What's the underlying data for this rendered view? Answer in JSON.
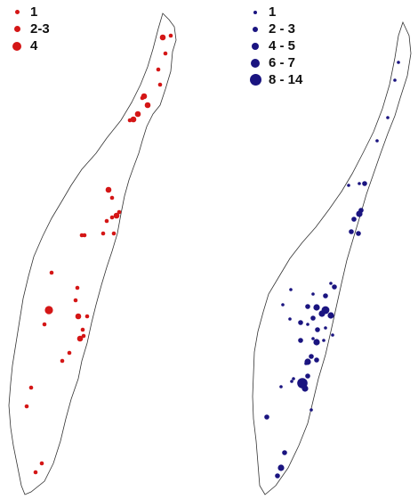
{
  "legends": {
    "left": {
      "color": "#d41616",
      "items": [
        {
          "label": "1"
        },
        {
          "label": "2-3"
        },
        {
          "label": "4"
        }
      ]
    },
    "right": {
      "color": "#1a1480",
      "items": [
        {
          "label": "1"
        },
        {
          "label": "2 - 3"
        },
        {
          "label": "4 - 5"
        },
        {
          "label": "6 - 7"
        },
        {
          "label": "8 - 14"
        }
      ]
    }
  },
  "maps": [
    {
      "name": "left-island-map",
      "point_color": "#d41616"
    },
    {
      "name": "right-island-map",
      "point_color": "#1a1480"
    }
  ]
}
